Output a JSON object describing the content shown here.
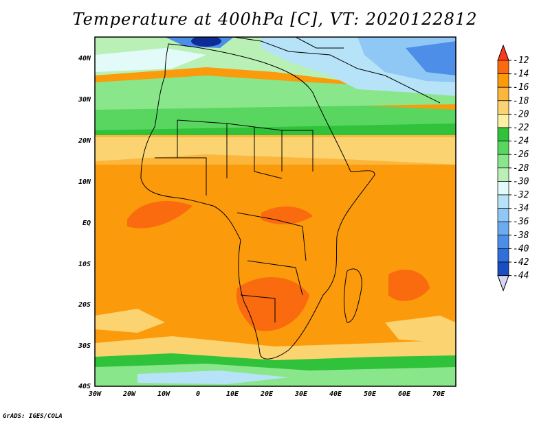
{
  "title": "Temperature at 400hPa [C], VT: 2020122812",
  "credit": "GrADS: IGES/COLA",
  "map": {
    "region": "Africa",
    "lon_range": [
      -30,
      75
    ],
    "lat_range": [
      -40,
      45
    ],
    "lon_ticks": [
      "30W",
      "20W",
      "10W",
      "0",
      "10E",
      "20E",
      "30E",
      "40E",
      "50E",
      "60E",
      "70E"
    ],
    "lat_ticks": [
      "40N",
      "30N",
      "20N",
      "10N",
      "EQ",
      "10S",
      "20S",
      "30S",
      "40S"
    ]
  },
  "colorbar": {
    "labels": [
      "-12",
      "-14",
      "-16",
      "-18",
      "-20",
      "-22",
      "-24",
      "-26",
      "-28",
      "-30",
      "-32",
      "-34",
      "-36",
      "-38",
      "-40",
      "-42",
      "-44"
    ],
    "colors": [
      "#fb3a1b",
      "#fa6a0f",
      "#fb9a0b",
      "#fbb63b",
      "#fbd370",
      "#fbf0a3",
      "#2fc23a",
      "#58d660",
      "#8ae68a",
      "#b9f0b6",
      "#e2fbf9",
      "#b6e3f7",
      "#8fc8f4",
      "#6cabef",
      "#4c8ee8",
      "#2f6fdc",
      "#1a4cc2",
      "#0e2b96"
    ]
  },
  "colors": {
    "warm_peak": "#fa6a0f",
    "warm": "#fb9a0b",
    "yellow": "#fbd370",
    "green": "#2fc23a",
    "pale_green": "#b9f0b6",
    "blue": "#4c8ee8"
  }
}
